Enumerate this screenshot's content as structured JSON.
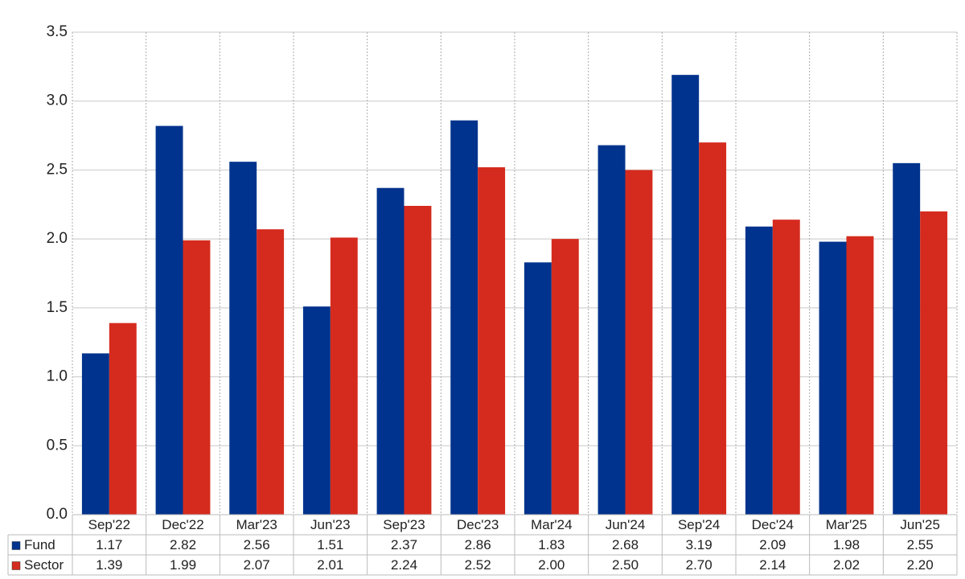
{
  "chart_data": {
    "type": "bar",
    "categories": [
      "Sep'22",
      "Dec'22",
      "Mar'23",
      "Jun'23",
      "Sep'23",
      "Dec'23",
      "Mar'24",
      "Jun'24",
      "Sep'24",
      "Dec'24",
      "Mar'25",
      "Jun'25"
    ],
    "series": [
      {
        "name": "Fund",
        "color": "#00338d",
        "values": [
          1.17,
          2.82,
          2.56,
          1.51,
          2.37,
          2.86,
          1.83,
          2.68,
          3.19,
          2.09,
          1.98,
          2.55
        ],
        "value_labels": [
          "1.17",
          "2.82",
          "2.56",
          "1.51",
          "2.37",
          "2.86",
          "1.83",
          "2.68",
          "3.19",
          "2.09",
          "1.98",
          "2.55"
        ]
      },
      {
        "name": "Sector",
        "color": "#d52b1e",
        "values": [
          1.39,
          1.99,
          2.07,
          2.01,
          2.24,
          2.52,
          2.0,
          2.5,
          2.7,
          2.14,
          2.02,
          2.2
        ],
        "value_labels": [
          "1.39",
          "1.99",
          "2.07",
          "2.01",
          "2.24",
          "2.52",
          "2.00",
          "2.50",
          "2.70",
          "2.14",
          "2.02",
          "2.20"
        ]
      }
    ],
    "ylim": [
      0,
      3.5
    ],
    "yticks": [
      {
        "value": 0,
        "label": "0.0"
      },
      0.5,
      {
        "value": 1,
        "label": "1.0"
      },
      1.5,
      {
        "value": 2,
        "label": "2.0"
      },
      2.5,
      {
        "value": 3,
        "label": "3.0"
      },
      3.5
    ],
    "grid": true
  }
}
